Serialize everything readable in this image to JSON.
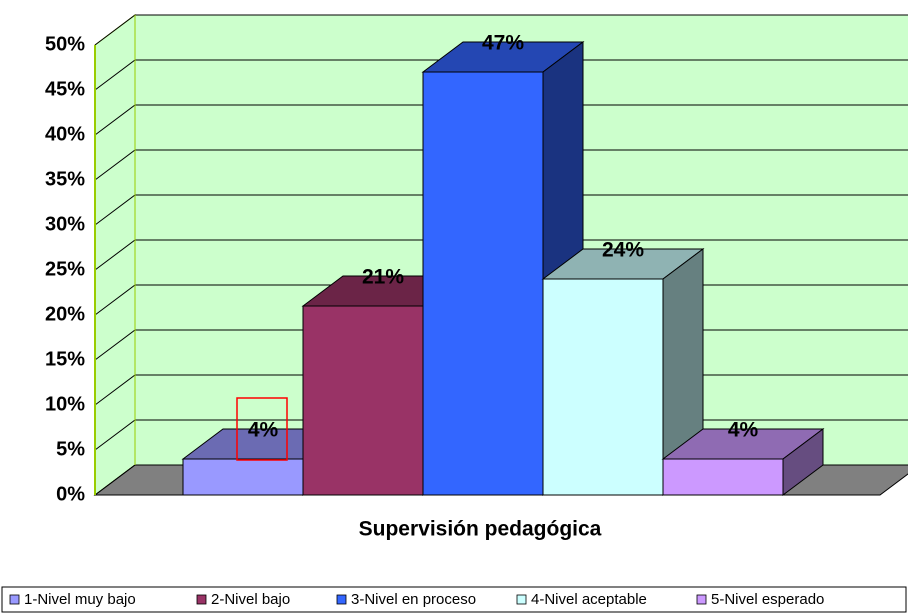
{
  "chart_data": {
    "type": "bar3d",
    "xlabel": "Supervisión pedagógica",
    "categories": [
      "Supervisión pedagógica"
    ],
    "series": [
      {
        "name": "1-Nivel muy bajo",
        "color": "#9999ff",
        "values": [
          4
        ],
        "value_labels": [
          "4%"
        ]
      },
      {
        "name": "2-Nivel bajo",
        "color": "#993366",
        "values": [
          21
        ],
        "value_labels": [
          "21%"
        ]
      },
      {
        "name": "3-Nivel en proceso",
        "color": "#3366ff",
        "values": [
          47
        ],
        "value_labels": [
          "47%"
        ]
      },
      {
        "name": "4-Nivel aceptable",
        "color": "#ccffff",
        "values": [
          24
        ],
        "value_labels": [
          "24%"
        ]
      },
      {
        "name": "5-Nivel esperado",
        "color": "#cc99ff",
        "values": [
          4
        ],
        "value_labels": [
          "4%"
        ]
      }
    ],
    "ylim": [
      0,
      50
    ],
    "yticks": [
      {
        "value": 0,
        "label": "0%"
      },
      {
        "value": 5,
        "label": "5%"
      },
      {
        "value": 10,
        "label": "10%"
      },
      {
        "value": 15,
        "label": "15%"
      },
      {
        "value": 20,
        "label": "20%"
      },
      {
        "value": 25,
        "label": "25%"
      },
      {
        "value": 30,
        "label": "30%"
      },
      {
        "value": 35,
        "label": "35%"
      },
      {
        "value": 40,
        "label": "40%"
      },
      {
        "value": 45,
        "label": "45%"
      },
      {
        "value": 50,
        "label": "50%"
      }
    ],
    "grid": true,
    "legend": "bottom"
  }
}
